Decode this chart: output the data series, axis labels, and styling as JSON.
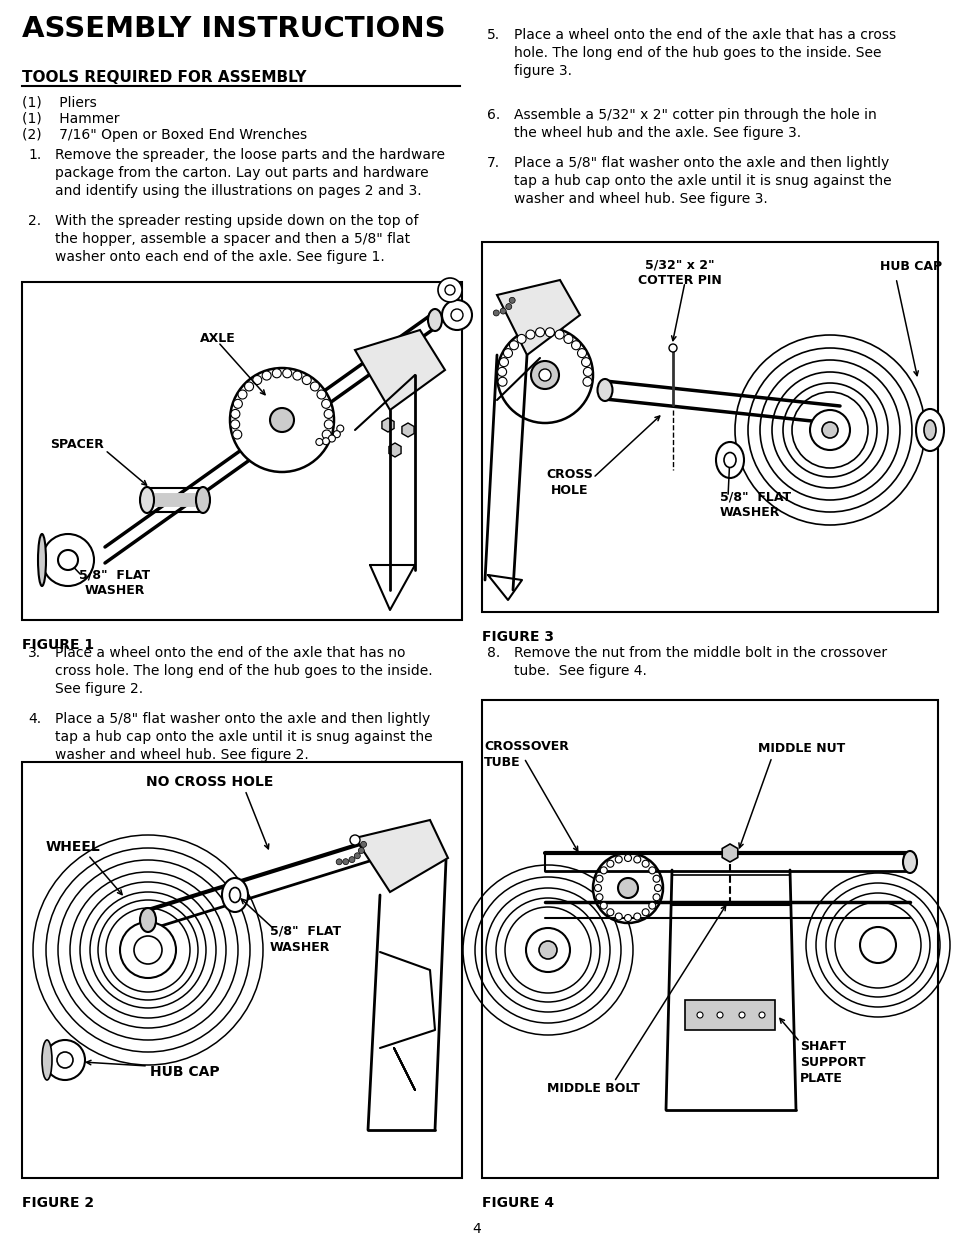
{
  "title": "ASSEMBLY INSTRUCTIONS",
  "subtitle": "TOOLS REQUIRED FOR ASSEMBLY",
  "tools": [
    "(1)    Pliers",
    "(1)    Hammer",
    "(2)    7/16\" Open or Boxed End Wrenches"
  ],
  "step1_num": "1.",
  "step1_text": "Remove the spreader, the loose parts and the hardware\npackage from the carton. Lay out parts and hardware\nand identify using the illustrations on pages 2 and 3.",
  "step2_num": "2.",
  "step2_text": "With the spreader resting upside down on the top of\nthe hopper, assemble a spacer and then a 5/8\" flat\nwasher onto each end of the axle. See figure 1.",
  "step3_num": "3.",
  "step3_text": "Place a wheel onto the end of the axle that has no\ncross hole. The long end of the hub goes to the inside.\nSee figure 2.",
  "step4_num": "4.",
  "step4_text": "Place a 5/8\" flat washer onto the axle and then lightly\ntap a hub cap onto the axle until it is snug against the\nwasher and wheel hub. See figure 2.",
  "step5_num": "5.",
  "step5_text": "Place a wheel onto the end of the axle that has a cross\nhole. The long end of the hub goes to the inside. See\nfigure 3.",
  "step6_num": "6.",
  "step6_text": "Assemble a 5/32\" x 2\" cotter pin through the hole in\nthe wheel hub and the axle. See figure 3.",
  "step7_num": "7.",
  "step7_text": "Place a 5/8\" flat washer onto the axle and then lightly\ntap a hub cap onto the axle until it is snug against the\nwasher and wheel hub. See figure 3.",
  "step8_num": "8.",
  "step8_text": "Remove the nut from the middle bolt in the crossover\ntube.  See figure 4.",
  "fig1_caption": "FIGURE 1",
  "fig2_caption": "FIGURE 2",
  "fig3_caption": "FIGURE 3",
  "fig4_caption": "FIGURE 4",
  "page_number": "4",
  "fig1_labels": {
    "axle": "AXLE",
    "spacer": "SPACER",
    "washer": "5/8\"  FLAT\nWASHER"
  },
  "fig2_labels": {
    "no_cross": "NO CROSS HOLE",
    "wheel": "WHEEL",
    "washer": "5/8\"  FLAT\nWASHER",
    "hub_cap": "HUB CAP"
  },
  "fig3_labels": {
    "cotter": "5/32\" x 2\"\nCOTTER PIN",
    "hub_cap": "HUB CAP",
    "cross_hole": "CROSS\nHOLE",
    "washer": "5/8\"  FLAT\nWASHER"
  },
  "fig4_labels": {
    "crossover": "CROSSOVER\nTUBE",
    "middle_nut": "MIDDLE NUT",
    "middle_bolt": "MIDDLE BOLT",
    "shaft": "SHAFT\nSUPPORT\nPLATE"
  },
  "bg": "#ffffff",
  "fg": "#000000"
}
